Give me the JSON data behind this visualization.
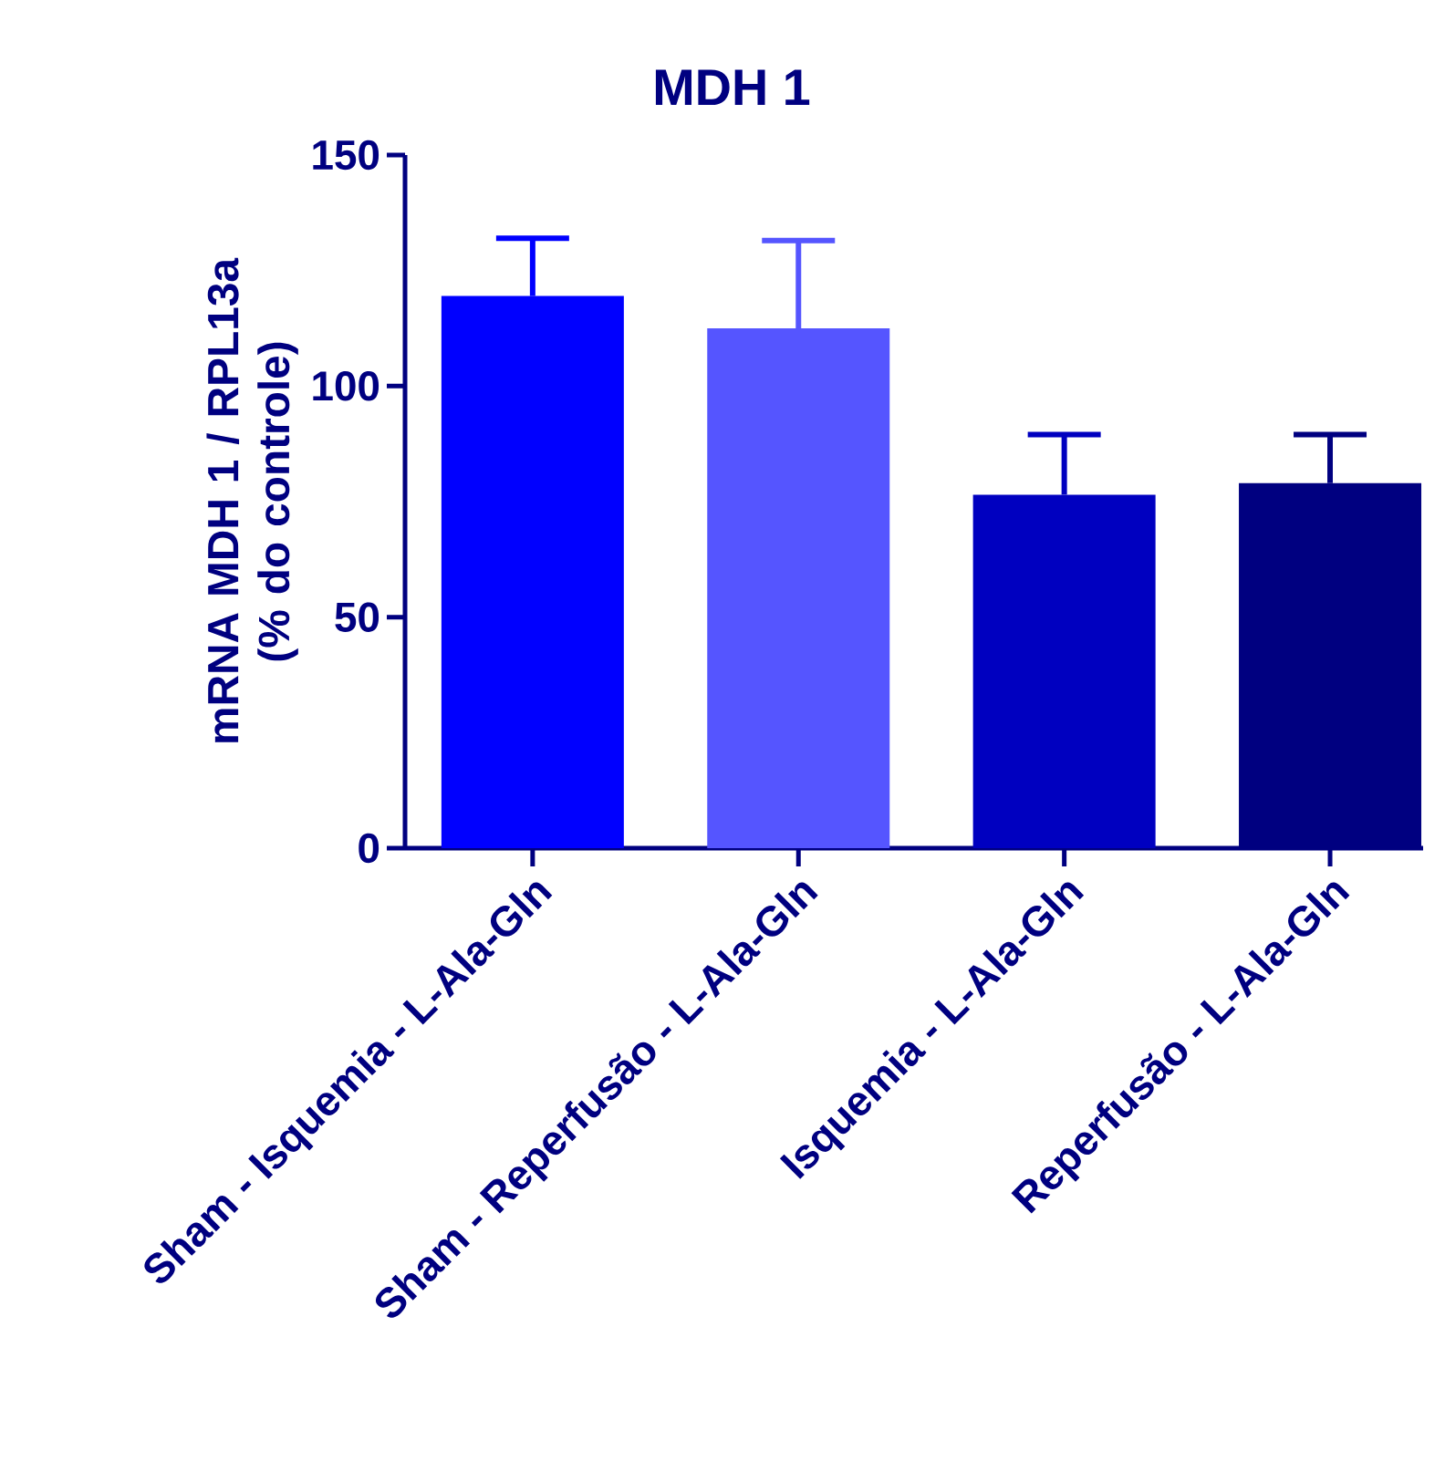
{
  "chart_data": {
    "type": "bar",
    "title": "MDH 1",
    "ylabel": "mRNA MDH 1 / RPL13a (% do controle)",
    "categories": [
      "Sham - Isquemia - L-Ala-Gln",
      "Sham - Reperfusão - L-Ala-Gln",
      "Isquemia - L-Ala-Gln",
      "Reperfusão - L-Ala-Gln"
    ],
    "values": [
      119.5,
      112.5,
      76.5,
      79
    ],
    "colors": [
      "#0000ff",
      "#5555ff",
      "#0000c0",
      "#000080"
    ],
    "errors": [
      [
        119.5,
        132
      ],
      [
        112.5,
        131.5
      ],
      [
        76.5,
        89.5
      ],
      [
        79,
        89.5
      ]
    ],
    "ylim": [
      0,
      150
    ],
    "yticks": [
      0,
      50,
      100,
      150
    ],
    "grid": false
  }
}
